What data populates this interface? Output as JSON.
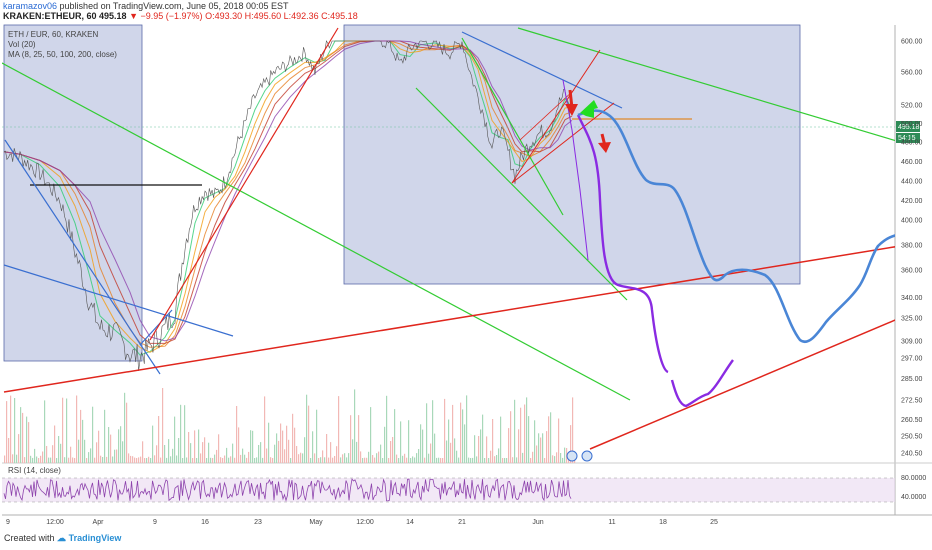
{
  "header": {
    "user": "karamazov06",
    "published": "published on TradingView.com, June 05, 2018 00:05 EST",
    "symbol": "KRAKEN:ETHEUR, 60",
    "last": "495.18",
    "change": "−9.95 (−1.97%)",
    "ohlc": "O:493.30 H:495.60 L:492.36 C:495.18"
  },
  "indicators": {
    "pair": "ETH / EUR, 60, KRAKEN",
    "vol": "Vol (20)",
    "ma": "MA (8, 25, 50, 100, 200, close)",
    "rsi": "RSI (14, close)"
  },
  "price_tag": {
    "value": "495.18",
    "countdown": "54:15"
  },
  "footer": {
    "created": "Created with",
    "brand": "TradingView"
  },
  "chart_data": {
    "type": "line",
    "y_ticks": [
      600,
      560,
      520,
      500,
      480,
      460,
      440,
      420,
      400,
      380,
      360,
      340,
      325,
      309,
      297,
      285,
      272.5,
      260.5,
      250.5,
      240.5
    ],
    "y_tick_labels": [
      "600.00",
      "560.00",
      "520.00",
      "500.00",
      "480.00",
      "460.00",
      "440.00",
      "420.00",
      "400.00",
      "380.00",
      "360.00",
      "340.00",
      "325.00",
      "309.00",
      "297.00",
      "285.00",
      "272.50",
      "260.50",
      "250.50",
      "240.50"
    ],
    "x_tick_labels": [
      "9",
      "12:00",
      "Apr",
      "9",
      "16",
      "23",
      "May",
      "12:00",
      "14",
      "21",
      "Jun",
      "11",
      "18",
      "25"
    ],
    "rsi_ticks": [
      80,
      40
    ],
    "rsi_tick_labels": [
      "80.0000",
      "40.0000"
    ],
    "last_price": 495.18,
    "colors": {
      "projection_blue": "#4a86d6",
      "projection_purple": "#8a2be2",
      "support_red": "#e0261d",
      "channel_green": "#33cc33",
      "rsi": "#8e44ad"
    }
  }
}
